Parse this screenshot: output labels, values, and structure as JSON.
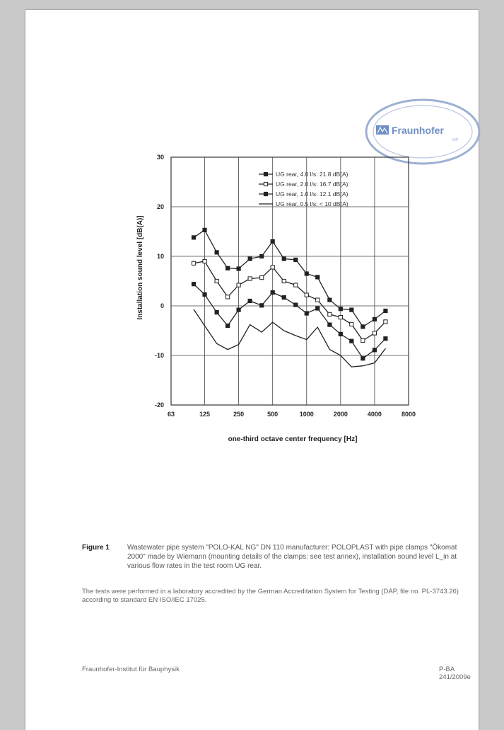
{
  "stamp": {
    "label": "Fraunhofer",
    "sub": "IBP"
  },
  "figure": {
    "label": "Figure 1",
    "caption": "Wastewater pipe system \"POLO-KAL NG\" DN 110 manufacturer: POLOPLAST with pipe clamps \"Ökomat 2000\" made by Wiemann (mounting details of the clamps: see test annex), installation sound level L_in at various flow rates in the test room UG rear."
  },
  "note": "The tests were performed in a laboratory accredited by the German Accreditation System for Testing (DAP, file no. PL-3743.26) according to standard EN ISO/IEC 17025.",
  "footer": {
    "left": "Fraunhofer-Institut für Bauphysik",
    "right": "P-BA 241/2009e"
  },
  "chart_data": {
    "type": "line",
    "xlabel": "one-third octave center frequency [Hz]",
    "ylabel": "Installation sound level [dB(A)]",
    "x_ticks": [
      "63",
      "125",
      "250",
      "500",
      "1000",
      "2000",
      "4000",
      "8000"
    ],
    "y_ticks": [
      30,
      20,
      10,
      0,
      -10,
      -20
    ],
    "ylim": [
      -20,
      30
    ],
    "x_log": true,
    "xlim": [
      63,
      8000
    ],
    "x": [
      100,
      125,
      160,
      200,
      250,
      315,
      400,
      500,
      630,
      800,
      1000,
      1250,
      1600,
      2000,
      2500,
      3150,
      4000,
      5000
    ],
    "grid": true,
    "legend_position": "top-right",
    "series": [
      {
        "name": "UG rear, 4.0 l/s: 21.8 dB(A)",
        "marker": "square-filled",
        "values": [
          13.8,
          15.3,
          10.8,
          7.6,
          7.5,
          9.5,
          10.0,
          13.0,
          9.5,
          9.3,
          6.5,
          5.8,
          1.2,
          -0.6,
          -0.8,
          -4.2,
          -2.7,
          -1.0
        ]
      },
      {
        "name": "UG rear, 2.0 l/s: 16.7 dB(A)",
        "marker": "square-open",
        "values": [
          8.6,
          9.0,
          5.0,
          1.8,
          4.2,
          5.5,
          5.7,
          7.8,
          5.0,
          4.2,
          2.2,
          1.2,
          -1.7,
          -2.3,
          -3.7,
          -7.0,
          -5.5,
          -3.2
        ]
      },
      {
        "name": "UG rear, 1.0 l/s: 12.1 dB(A)",
        "marker": "square-filled",
        "values": [
          4.4,
          2.3,
          -1.3,
          -4.0,
          -0.8,
          1.0,
          0.1,
          2.7,
          1.7,
          0.2,
          -1.5,
          -0.5,
          -3.8,
          -5.7,
          -7.1,
          -10.6,
          -8.9,
          -6.6
        ]
      },
      {
        "name": "UG rear, 0.5 l/s: < 10 dB(A)",
        "marker": "none",
        "values": [
          -0.7,
          -4.0,
          -7.6,
          -8.8,
          -7.8,
          -3.8,
          -5.3,
          -3.3,
          -5.0,
          -6.0,
          -6.8,
          -4.3,
          -8.8,
          -10.0,
          -12.3,
          -12.1,
          -11.5,
          -8.6
        ]
      }
    ]
  }
}
